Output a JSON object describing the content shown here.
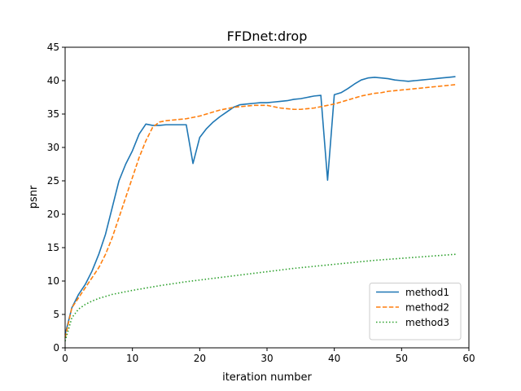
{
  "chart_data": {
    "type": "line",
    "title": "FFDnet:drop",
    "xlabel": "iteration number",
    "ylabel": "psnr",
    "xlim": [
      0,
      60
    ],
    "ylim": [
      0,
      45
    ],
    "xticks": [
      0,
      10,
      20,
      30,
      40,
      50,
      60
    ],
    "yticks": [
      0,
      5,
      10,
      15,
      20,
      25,
      30,
      35,
      40,
      45
    ],
    "grid": false,
    "legend_position": "lower-right",
    "series": [
      {
        "name": "method1",
        "color": "#1f77b4",
        "style": "solid",
        "x": [
          0,
          1,
          2,
          3,
          4,
          5,
          6,
          7,
          8,
          9,
          10,
          11,
          12,
          13,
          14,
          15,
          16,
          17,
          18,
          19,
          20,
          21,
          22,
          23,
          24,
          25,
          26,
          27,
          28,
          29,
          30,
          31,
          32,
          33,
          34,
          35,
          36,
          37,
          38,
          39,
          40,
          41,
          42,
          43,
          44,
          45,
          46,
          47,
          48,
          49,
          50,
          51,
          52,
          53,
          54,
          55,
          56,
          57,
          58
        ],
        "y": [
          2,
          6,
          8,
          9.5,
          11.5,
          14,
          17,
          21,
          25,
          27.5,
          29.5,
          32,
          33.5,
          33.3,
          33.3,
          33.4,
          33.4,
          33.4,
          33.4,
          27.6,
          31.5,
          32.8,
          33.8,
          34.6,
          35.3,
          36,
          36.4,
          36.5,
          36.6,
          36.7,
          36.7,
          36.8,
          36.9,
          37,
          37.2,
          37.3,
          37.5,
          37.7,
          37.8,
          25.1,
          37.9,
          38.2,
          38.8,
          39.5,
          40.1,
          40.4,
          40.5,
          40.4,
          40.3,
          40.1,
          40,
          39.9,
          40,
          40.1,
          40.2,
          40.3,
          40.4,
          40.5,
          40.6
        ]
      },
      {
        "name": "method2",
        "color": "#ff7f0e",
        "style": "dashed",
        "x": [
          0,
          1,
          2,
          3,
          4,
          5,
          6,
          7,
          8,
          9,
          10,
          11,
          12,
          13,
          14,
          15,
          16,
          17,
          18,
          19,
          20,
          21,
          22,
          23,
          24,
          25,
          26,
          27,
          28,
          29,
          30,
          31,
          32,
          33,
          34,
          35,
          36,
          37,
          38,
          39,
          40,
          41,
          42,
          43,
          44,
          45,
          46,
          47,
          48,
          49,
          50,
          51,
          52,
          53,
          54,
          55,
          56,
          57,
          58
        ],
        "y": [
          1.5,
          6,
          7.5,
          9,
          10.5,
          12,
          14,
          16.5,
          19.5,
          22.5,
          25.5,
          28.5,
          31,
          33,
          33.8,
          34,
          34.1,
          34.2,
          34.3,
          34.5,
          34.7,
          35,
          35.3,
          35.6,
          35.8,
          36,
          36.1,
          36.2,
          36.3,
          36.3,
          36.3,
          36.1,
          35.9,
          35.8,
          35.7,
          35.7,
          35.8,
          35.9,
          36.1,
          36.3,
          36.5,
          36.8,
          37.1,
          37.4,
          37.7,
          37.9,
          38.1,
          38.2,
          38.4,
          38.5,
          38.6,
          38.7,
          38.8,
          38.9,
          39,
          39.1,
          39.2,
          39.3,
          39.4
        ]
      },
      {
        "name": "method3",
        "color": "#2ca02c",
        "style": "dotted",
        "x": [
          0,
          1,
          2,
          3,
          4,
          5,
          6,
          7,
          8,
          9,
          10,
          12,
          14,
          16,
          18,
          20,
          22,
          24,
          26,
          28,
          30,
          32,
          34,
          36,
          38,
          40,
          42,
          44,
          46,
          48,
          50,
          52,
          54,
          56,
          58
        ],
        "y": [
          1,
          4.5,
          5.8,
          6.5,
          7,
          7.4,
          7.7,
          8,
          8.2,
          8.4,
          8.6,
          8.95,
          9.3,
          9.6,
          9.9,
          10.15,
          10.4,
          10.65,
          10.9,
          11.15,
          11.4,
          11.65,
          11.9,
          12.1,
          12.3,
          12.5,
          12.7,
          12.9,
          13.1,
          13.25,
          13.4,
          13.55,
          13.7,
          13.85,
          14
        ]
      }
    ]
  }
}
